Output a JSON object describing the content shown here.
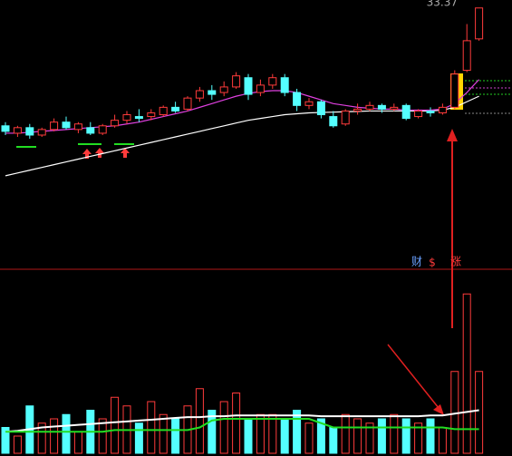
{
  "chart_data": {
    "type": "candlestick",
    "high_label": "33.37",
    "tags": [
      "财",
      "$",
      "涨"
    ],
    "ylim": [
      24,
      33.8
    ],
    "open": [
      27.0,
      26.6,
      26.9,
      26.5,
      26.8,
      27.2,
      26.8,
      26.9,
      26.6,
      27.0,
      27.3,
      27.5,
      27.5,
      27.6,
      28.0,
      27.9,
      28.5,
      28.9,
      28.8,
      29.1,
      29.6,
      28.8,
      29.2,
      29.6,
      28.8,
      28.1,
      28.3,
      27.5,
      27.1,
      27.8,
      27.9,
      28.1,
      27.9,
      28.1,
      27.5,
      27.8,
      27.7,
      28.0,
      30.0,
      31.7
    ],
    "close": [
      26.7,
      26.9,
      26.5,
      26.8,
      27.2,
      26.9,
      27.1,
      26.6,
      27.0,
      27.3,
      27.6,
      27.4,
      27.7,
      28.0,
      27.8,
      28.5,
      28.9,
      28.7,
      29.1,
      29.7,
      28.7,
      29.2,
      29.6,
      28.8,
      28.1,
      28.3,
      27.6,
      27.0,
      27.8,
      27.9,
      28.1,
      27.9,
      28.0,
      27.4,
      27.8,
      27.7,
      28.0,
      29.8,
      31.6,
      33.37
    ],
    "high": [
      27.2,
      27.0,
      27.1,
      26.9,
      27.4,
      27.5,
      27.2,
      27.2,
      27.1,
      27.6,
      27.8,
      27.9,
      27.9,
      28.1,
      28.3,
      28.6,
      29.1,
      29.2,
      29.4,
      29.9,
      29.8,
      29.5,
      29.8,
      29.8,
      29.0,
      28.5,
      28.4,
      27.8,
      27.9,
      28.2,
      28.3,
      28.2,
      28.2,
      28.2,
      27.9,
      28.0,
      28.2,
      30.0,
      32.5,
      33.37
    ],
    "low": [
      26.5,
      26.4,
      26.3,
      26.4,
      26.7,
      26.8,
      26.6,
      26.5,
      26.5,
      26.9,
      27.1,
      27.2,
      27.3,
      27.5,
      27.7,
      27.8,
      28.3,
      28.4,
      28.6,
      29.0,
      28.4,
      28.6,
      29.0,
      28.6,
      27.8,
      27.9,
      27.4,
      26.9,
      27.0,
      27.6,
      27.8,
      27.7,
      27.8,
      27.3,
      27.4,
      27.5,
      27.6,
      27.9,
      29.9,
      31.6
    ],
    "up_color": "#ff3b3b",
    "down_color": "#54ffff",
    "ma": [
      {
        "color": "#ffffff",
        "values": [
          24.3,
          24.45,
          24.6,
          24.75,
          24.9,
          25.05,
          25.2,
          25.35,
          25.5,
          25.65,
          25.8,
          25.95,
          26.1,
          26.25,
          26.4,
          26.55,
          26.7,
          26.85,
          27.0,
          27.15,
          27.3,
          27.4,
          27.5,
          27.6,
          27.65,
          27.7,
          27.72,
          27.74,
          27.76,
          27.78,
          27.8,
          27.8,
          27.8,
          27.8,
          27.8,
          27.8,
          27.85,
          28.0,
          28.3,
          28.6
        ]
      },
      {
        "color": "#e040e0",
        "values": [
          26.6,
          26.6,
          26.65,
          26.7,
          26.75,
          26.8,
          26.85,
          26.9,
          26.95,
          27.0,
          27.1,
          27.2,
          27.35,
          27.5,
          27.65,
          27.8,
          28.0,
          28.2,
          28.4,
          28.6,
          28.75,
          28.85,
          28.9,
          28.9,
          28.8,
          28.6,
          28.4,
          28.2,
          28.1,
          28.0,
          27.95,
          27.9,
          27.9,
          27.85,
          27.85,
          27.85,
          27.9,
          28.2,
          28.8,
          29.5
        ]
      }
    ],
    "volume": [
      30,
      20,
      55,
      35,
      40,
      45,
      25,
      50,
      40,
      65,
      55,
      35,
      60,
      45,
      40,
      55,
      75,
      50,
      60,
      70,
      40,
      45,
      45,
      40,
      50,
      35,
      40,
      30,
      45,
      40,
      35,
      40,
      45,
      40,
      35,
      40,
      30,
      95,
      185,
      95
    ],
    "vlim": [
      0,
      200
    ],
    "vol_ma": [
      {
        "color": "#ffffff",
        "values": [
          25,
          26,
          28,
          30,
          31,
          32,
          33,
          34,
          35,
          36,
          37,
          38,
          39,
          40,
          41,
          42,
          42,
          43,
          43,
          44,
          44,
          44,
          44,
          44,
          44,
          44,
          43,
          43,
          43,
          43,
          43,
          43,
          43,
          43,
          43,
          44,
          44,
          46,
          48,
          50
        ]
      },
      {
        "color": "#22dd22",
        "values": [
          25,
          25,
          25,
          25,
          25,
          25,
          25,
          25,
          25,
          27,
          27,
          27,
          27,
          27,
          27,
          27,
          30,
          38,
          40,
          40,
          40,
          40,
          40,
          40,
          40,
          40,
          35,
          30,
          30,
          30,
          30,
          30,
          30,
          30,
          30,
          30,
          30,
          28,
          28,
          28
        ]
      }
    ]
  }
}
